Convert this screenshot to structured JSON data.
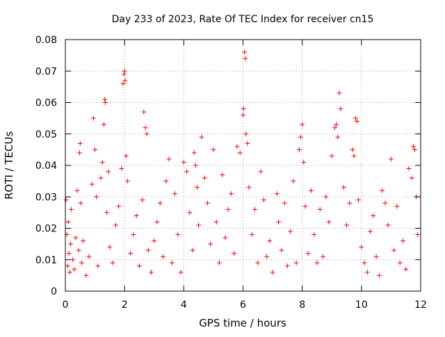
{
  "chart_data": {
    "type": "scatter",
    "title": "Day 233 of 2023, Rate Of TEC Index for receiver cn15",
    "xlabel": "GPS time / hours",
    "ylabel": "ROTI / TECUs",
    "xlim": [
      0,
      12
    ],
    "ylim": [
      0,
      0.08
    ],
    "xticks": [
      0,
      2,
      4,
      6,
      8,
      10,
      12
    ],
    "xtick_labels": [
      "0",
      "2",
      "4",
      "6",
      "8",
      "10",
      "12"
    ],
    "yticks": [
      0,
      0.01,
      0.02,
      0.03,
      0.04,
      0.05,
      0.06,
      0.07,
      0.08
    ],
    "ytick_labels": [
      "0",
      "0.01",
      "0.02",
      "0.03",
      "0.04",
      "0.05",
      "0.06",
      "0.07",
      "0.08"
    ],
    "grid": true,
    "marker": "+",
    "color": "#ff0000",
    "series": [
      {
        "name": "cn15",
        "x": [
          0.02,
          0.05,
          0.08,
          0.1,
          0.12,
          0.15,
          0.18,
          0.2,
          0.25,
          0.3,
          0.35,
          0.4,
          0.45,
          0.48,
          0.5,
          0.52,
          0.55,
          0.6,
          0.7,
          0.8,
          0.9,
          0.95,
          1.0,
          1.05,
          1.1,
          1.2,
          1.25,
          1.3,
          1.33,
          1.35,
          1.4,
          1.45,
          1.5,
          1.6,
          1.7,
          1.8,
          1.9,
          1.95,
          1.98,
          2.0,
          2.02,
          2.05,
          2.1,
          2.2,
          2.3,
          2.4,
          2.5,
          2.6,
          2.65,
          2.7,
          2.75,
          2.8,
          2.9,
          3.0,
          3.1,
          3.2,
          3.3,
          3.4,
          3.5,
          3.6,
          3.7,
          3.8,
          3.9,
          4.0,
          4.1,
          4.2,
          4.3,
          4.35,
          4.4,
          4.45,
          4.5,
          4.6,
          4.7,
          4.8,
          4.9,
          5.0,
          5.1,
          5.2,
          5.3,
          5.4,
          5.5,
          5.6,
          5.7,
          5.8,
          5.9,
          6.0,
          6.02,
          6.05,
          6.08,
          6.1,
          6.15,
          6.2,
          6.3,
          6.4,
          6.5,
          6.6,
          6.7,
          6.8,
          6.9,
          7.0,
          7.15,
          7.2,
          7.3,
          7.4,
          7.5,
          7.6,
          7.7,
          7.8,
          7.9,
          7.95,
          8.0,
          8.05,
          8.1,
          8.2,
          8.3,
          8.4,
          8.5,
          8.6,
          8.7,
          8.8,
          8.9,
          9.0,
          9.1,
          9.15,
          9.2,
          9.25,
          9.3,
          9.4,
          9.5,
          9.6,
          9.7,
          9.75,
          9.8,
          9.85,
          9.9,
          10.0,
          10.1,
          10.2,
          10.3,
          10.4,
          10.5,
          10.6,
          10.7,
          10.8,
          10.9,
          11.0,
          11.1,
          11.2,
          11.3,
          11.4,
          11.5,
          11.6,
          11.7,
          11.75,
          11.8,
          11.85,
          11.9
        ],
        "y": [
          0.029,
          0.018,
          0.008,
          0.022,
          0.012,
          0.006,
          0.015,
          0.026,
          0.01,
          0.007,
          0.017,
          0.032,
          0.013,
          0.044,
          0.047,
          0.028,
          0.009,
          0.016,
          0.005,
          0.011,
          0.034,
          0.055,
          0.045,
          0.03,
          0.008,
          0.036,
          0.041,
          0.053,
          0.061,
          0.06,
          0.025,
          0.038,
          0.014,
          0.009,
          0.021,
          0.027,
          0.039,
          0.066,
          0.069,
          0.07,
          0.067,
          0.043,
          0.035,
          0.012,
          0.018,
          0.024,
          0.008,
          0.029,
          0.057,
          0.052,
          0.05,
          0.013,
          0.006,
          0.016,
          0.022,
          0.028,
          0.011,
          0.035,
          0.042,
          0.009,
          0.031,
          0.018,
          0.006,
          0.041,
          0.038,
          0.025,
          0.013,
          0.044,
          0.04,
          0.033,
          0.021,
          0.049,
          0.036,
          0.028,
          0.015,
          0.045,
          0.022,
          0.009,
          0.037,
          0.017,
          0.026,
          0.031,
          0.012,
          0.046,
          0.044,
          0.056,
          0.058,
          0.076,
          0.074,
          0.05,
          0.047,
          0.033,
          0.018,
          0.026,
          0.009,
          0.038,
          0.029,
          0.011,
          0.016,
          0.006,
          0.031,
          0.022,
          0.013,
          0.028,
          0.008,
          0.019,
          0.035,
          0.009,
          0.045,
          0.049,
          0.053,
          0.041,
          0.027,
          0.012,
          0.032,
          0.018,
          0.009,
          0.026,
          0.011,
          0.03,
          0.022,
          0.043,
          0.052,
          0.053,
          0.049,
          0.063,
          0.058,
          0.033,
          0.021,
          0.028,
          0.045,
          0.043,
          0.055,
          0.054,
          0.029,
          0.014,
          0.009,
          0.006,
          0.019,
          0.024,
          0.011,
          0.005,
          0.032,
          0.028,
          0.021,
          0.042,
          0.013,
          0.027,
          0.009,
          0.016,
          0.007,
          0.039,
          0.036,
          0.046,
          0.045,
          0.03,
          0.018
        ]
      }
    ]
  }
}
